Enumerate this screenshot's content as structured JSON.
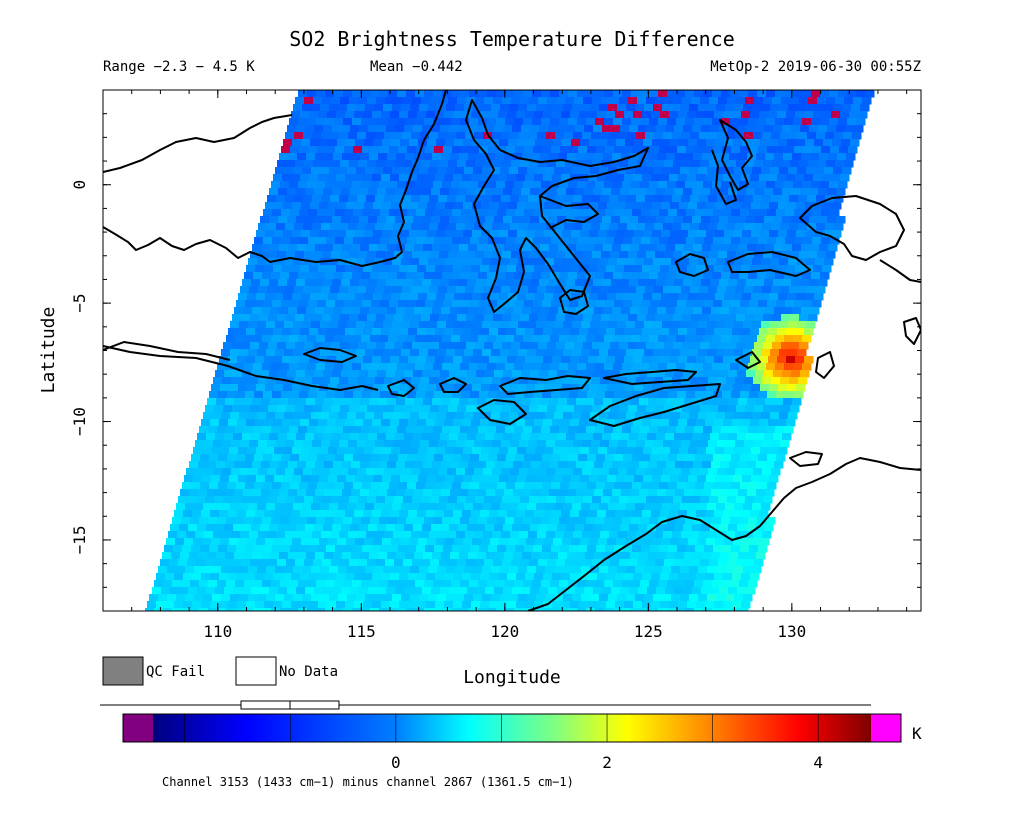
{
  "title": "SO2 Brightness Temperature Difference",
  "info": {
    "range": "Range −2.3 − 4.5 K",
    "mean": "Mean −0.442",
    "satellite": "MetOp-2 2019-06-30 00:55Z"
  },
  "axes": {
    "xlabel": "Longitude",
    "ylabel": "Latitude",
    "xticks": [
      "110",
      "115",
      "120",
      "125",
      "130"
    ],
    "yticks": [
      "0",
      "−5",
      "−10",
      "−15"
    ],
    "xrange": [
      106,
      134.5
    ],
    "yrange": [
      -18,
      4
    ]
  },
  "legend": {
    "qc_fail": "QC Fail",
    "no_data": "No Data",
    "qc_fail_color": "#808080",
    "no_data_color": "#ffffff"
  },
  "colorbar": {
    "unit": "K",
    "range": [
      -2.3,
      4.5
    ],
    "ticks": [
      "0",
      "2",
      "4"
    ],
    "under_color": "#800080",
    "over_color": "#ff00ff",
    "caption": "Channel 3153 (1433 cm−1) minus channel 2867 (1361.5 cm−1)"
  },
  "chart_data": {
    "type": "heatmap",
    "title": "SO2 Brightness Temperature Difference",
    "xlabel": "Longitude",
    "ylabel": "Latitude",
    "units": "K",
    "value_range": [
      -2.3,
      4.5
    ],
    "mean": -0.442,
    "hotspot": {
      "lon": 129.8,
      "lat": -7.2,
      "value": 4.3
    }
  }
}
